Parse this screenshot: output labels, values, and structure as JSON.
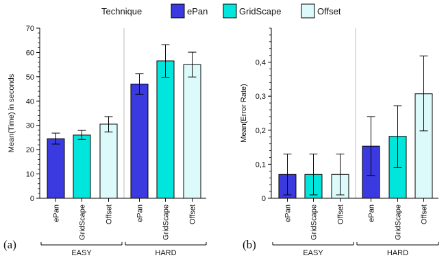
{
  "legend": {
    "title": "Technique",
    "items": [
      {
        "name": "ePan",
        "color": "#3a3ae0"
      },
      {
        "name": "GridScape",
        "color": "#00e6dc"
      },
      {
        "name": "Offset",
        "color": "#dcfafa"
      }
    ]
  },
  "chart_data": [
    {
      "type": "bar",
      "panel_label": "(a)",
      "ylabel": "Mean(Time) in seconds",
      "ylim": [
        0,
        70
      ],
      "yticks": [
        "0",
        "10",
        "20",
        "30",
        "40",
        "50",
        "60",
        "70"
      ],
      "groups": [
        "EASY",
        "HARD"
      ],
      "categories": [
        "ePan",
        "GridScape",
        "Offset"
      ],
      "series": [
        {
          "group": "EASY",
          "values": [
            24.5,
            26.0,
            30.5
          ],
          "err_low": [
            22.3,
            24.2,
            27.3
          ],
          "err_high": [
            26.8,
            27.9,
            33.6
          ]
        },
        {
          "group": "HARD",
          "values": [
            47.0,
            56.5,
            55.0
          ],
          "err_low": [
            42.8,
            49.8,
            49.9
          ],
          "err_high": [
            51.2,
            63.2,
            60.1
          ]
        }
      ]
    },
    {
      "type": "bar",
      "panel_label": "(b)",
      "ylabel": "Mean(Error Rate)",
      "ylim": [
        0,
        0.5
      ],
      "yticks": [
        "0",
        "0,1",
        "0,2",
        "0,3",
        "0,4"
      ],
      "groups": [
        "EASY",
        "HARD"
      ],
      "categories": [
        "ePan",
        "GridScape",
        "Offset"
      ],
      "series": [
        {
          "group": "EASY",
          "values": [
            0.07,
            0.07,
            0.07
          ],
          "err_low": [
            0.01,
            0.01,
            0.01
          ],
          "err_high": [
            0.13,
            0.13,
            0.13
          ]
        },
        {
          "group": "HARD",
          "values": [
            0.153,
            0.182,
            0.307
          ],
          "err_low": [
            0.067,
            0.09,
            0.198
          ],
          "err_high": [
            0.24,
            0.272,
            0.418
          ]
        }
      ]
    }
  ]
}
